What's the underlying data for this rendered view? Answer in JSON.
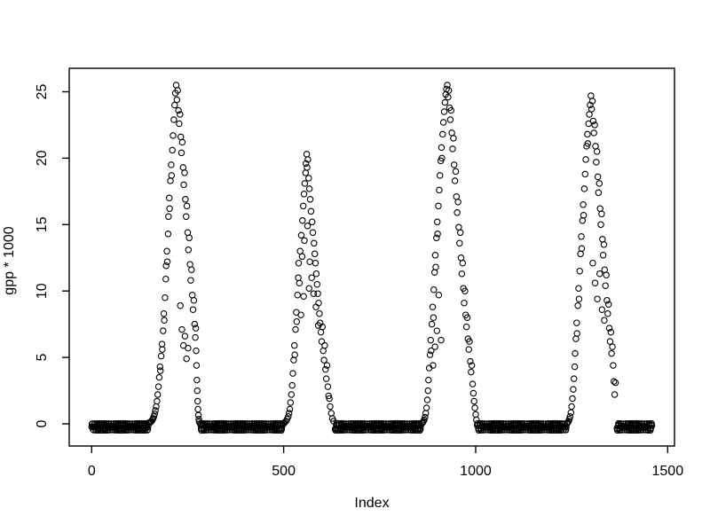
{
  "figure": {
    "background": "#ffffff",
    "foreground": "#000000",
    "title": ""
  },
  "chart_data": {
    "type": "scatter",
    "title": "",
    "xlabel": "Index",
    "ylabel": "gpp * 1000",
    "marker": "open-circle",
    "marker_color": "#000000",
    "grid": false,
    "legend": false,
    "x_ticks": [
      0,
      500,
      1000,
      1500
    ],
    "y_ticks": [
      0,
      5,
      10,
      15,
      20,
      25
    ],
    "xlim": [
      -58,
      1518
    ],
    "ylim": [
      -1.6,
      26.6
    ],
    "n_points_approx": 1460,
    "description": "Daily GPP*1000 time series over ~4 seasonal cycles; near-zero in winter with slight negative noise, seasonal peaks in summer",
    "seasonal_peaks": [
      {
        "index": 220,
        "value": 25.5
      },
      {
        "index": 560,
        "value": 20.3
      },
      {
        "index": 926,
        "value": 25.5
      },
      {
        "index": 1300,
        "value": 24.7
      }
    ],
    "zero_noise_range": [
      -0.5,
      0.05
    ],
    "zero_runs": [
      [
        0,
        147
      ],
      [
        283,
        498
      ],
      [
        634,
        857
      ],
      [
        1004,
        1236
      ],
      [
        1368,
        1459
      ]
    ],
    "season_points": [
      [
        [
          148,
          0.05
        ],
        [
          150,
          0.1
        ],
        [
          152,
          0.1
        ],
        [
          154,
          0.15
        ],
        [
          156,
          0.2
        ],
        [
          158,
          0.3
        ],
        [
          160,
          0.4
        ],
        [
          162,
          0.55
        ],
        [
          164,
          0.75
        ],
        [
          166,
          1.0
        ],
        [
          168,
          1.3
        ],
        [
          170,
          1.7
        ],
        [
          172,
          2.2
        ],
        [
          174,
          2.8
        ],
        [
          176,
          3.5
        ],
        [
          178,
          4.3
        ],
        [
          179,
          4.0
        ],
        [
          181,
          5.1
        ],
        [
          183,
          6.0
        ],
        [
          184,
          5.6
        ],
        [
          186,
          7.0
        ],
        [
          188,
          8.3
        ],
        [
          189,
          7.8
        ],
        [
          191,
          9.5
        ],
        [
          193,
          10.9
        ],
        [
          194,
          11.9
        ],
        [
          196,
          13.0
        ],
        [
          197,
          12.2
        ],
        [
          199,
          14.3
        ],
        [
          200,
          15.6
        ],
        [
          202,
          17.0
        ],
        [
          203,
          16.2
        ],
        [
          205,
          18.3
        ],
        [
          207,
          19.5
        ],
        [
          208,
          18.7
        ],
        [
          210,
          20.6
        ],
        [
          212,
          21.7
        ],
        [
          214,
          22.9
        ],
        [
          216,
          24.0
        ],
        [
          218,
          24.9
        ],
        [
          220,
          25.5
        ],
        [
          222,
          24.4
        ],
        [
          224,
          25.1
        ],
        [
          226,
          23.6
        ],
        [
          228,
          22.6
        ],
        [
          230,
          23.3
        ],
        [
          231,
          8.9
        ],
        [
          232,
          21.6
        ],
        [
          234,
          20.4
        ],
        [
          235,
          7.1
        ],
        [
          236,
          21.2
        ],
        [
          238,
          19.3
        ],
        [
          239,
          5.9
        ],
        [
          240,
          18.0
        ],
        [
          242,
          18.9
        ],
        [
          243,
          6.6
        ],
        [
          244,
          16.9
        ],
        [
          246,
          15.6
        ],
        [
          247,
          4.9
        ],
        [
          248,
          16.4
        ],
        [
          250,
          14.4
        ],
        [
          251,
          5.7
        ],
        [
          252,
          13.1
        ],
        [
          254,
          14.0
        ],
        [
          256,
          12.0
        ],
        [
          258,
          10.8
        ],
        [
          260,
          11.6
        ],
        [
          262,
          9.7
        ],
        [
          264,
          8.6
        ],
        [
          266,
          9.3
        ],
        [
          268,
          7.5
        ],
        [
          270,
          6.5
        ],
        [
          271,
          7.2
        ],
        [
          272,
          5.5
        ],
        [
          273,
          4.4
        ],
        [
          274,
          3.3
        ],
        [
          275,
          2.5
        ],
        [
          276,
          1.7
        ],
        [
          277,
          1.1
        ],
        [
          278,
          0.65
        ],
        [
          279,
          0.35
        ],
        [
          280,
          0.15
        ]
      ],
      [
        [
          500,
          0.05
        ],
        [
          503,
          0.1
        ],
        [
          506,
          0.2
        ],
        [
          509,
          0.35
        ],
        [
          512,
          0.55
        ],
        [
          514,
          0.8
        ],
        [
          516,
          1.1
        ],
        [
          518,
          1.6
        ],
        [
          520,
          2.2
        ],
        [
          522,
          2.9
        ],
        [
          524,
          3.8
        ],
        [
          526,
          4.8
        ],
        [
          528,
          5.9
        ],
        [
          529,
          5.2
        ],
        [
          531,
          7.1
        ],
        [
          533,
          8.4
        ],
        [
          534,
          7.7
        ],
        [
          536,
          9.7
        ],
        [
          538,
          11.0
        ],
        [
          539,
          12.1
        ],
        [
          541,
          10.6
        ],
        [
          543,
          13.0
        ],
        [
          545,
          8.2
        ],
        [
          546,
          14.2
        ],
        [
          548,
          12.6
        ],
        [
          549,
          15.3
        ],
        [
          551,
          16.4
        ],
        [
          552,
          9.6
        ],
        [
          553,
          17.3
        ],
        [
          554,
          13.8
        ],
        [
          555,
          18.1
        ],
        [
          557,
          18.9
        ],
        [
          558,
          19.6
        ],
        [
          560,
          20.3
        ],
        [
          561,
          19.3
        ],
        [
          562,
          14.9
        ],
        [
          563,
          19.9
        ],
        [
          565,
          18.5
        ],
        [
          566,
          10.2
        ],
        [
          567,
          17.7
        ],
        [
          568,
          12.2
        ],
        [
          569,
          16.9
        ],
        [
          571,
          16.0
        ],
        [
          573,
          11.0
        ],
        [
          574,
          15.2
        ],
        [
          576,
          14.4
        ],
        [
          578,
          9.8
        ],
        [
          579,
          13.6
        ],
        [
          581,
          12.8
        ],
        [
          583,
          12.1
        ],
        [
          584,
          8.8
        ],
        [
          585,
          11.3
        ],
        [
          587,
          10.5
        ],
        [
          589,
          9.8
        ],
        [
          590,
          7.4
        ],
        [
          591,
          9.1
        ],
        [
          593,
          8.3
        ],
        [
          595,
          7.6
        ],
        [
          597,
          6.9
        ],
        [
          599,
          6.2
        ],
        [
          601,
          7.3
        ],
        [
          603,
          5.5
        ],
        [
          605,
          4.8
        ],
        [
          607,
          5.9
        ],
        [
          609,
          4.1
        ],
        [
          611,
          3.4
        ],
        [
          613,
          4.4
        ],
        [
          615,
          2.8
        ],
        [
          617,
          2.1
        ],
        [
          619,
          1.9
        ],
        [
          621,
          1.3
        ],
        [
          624,
          0.8
        ],
        [
          627,
          0.4
        ],
        [
          630,
          0.2
        ]
      ],
      [
        [
          860,
          0.05
        ],
        [
          862,
          0.1
        ],
        [
          864,
          0.2
        ],
        [
          866,
          0.3
        ],
        [
          868,
          0.5
        ],
        [
          870,
          0.8
        ],
        [
          872,
          1.2
        ],
        [
          874,
          1.8
        ],
        [
          876,
          2.5
        ],
        [
          877,
          3.3
        ],
        [
          879,
          4.2
        ],
        [
          881,
          5.2
        ],
        [
          883,
          6.3
        ],
        [
          884,
          5.5
        ],
        [
          886,
          7.5
        ],
        [
          888,
          8.8
        ],
        [
          889,
          4.4
        ],
        [
          890,
          8.0
        ],
        [
          891,
          10.1
        ],
        [
          893,
          11.4
        ],
        [
          894,
          5.8
        ],
        [
          895,
          12.7
        ],
        [
          896,
          11.8
        ],
        [
          898,
          14.0
        ],
        [
          899,
          7.0
        ],
        [
          900,
          15.2
        ],
        [
          901,
          14.3
        ],
        [
          903,
          16.4
        ],
        [
          904,
          9.7
        ],
        [
          905,
          17.6
        ],
        [
          907,
          18.7
        ],
        [
          909,
          19.8
        ],
        [
          910,
          6.3
        ],
        [
          911,
          20.8
        ],
        [
          912,
          20.0
        ],
        [
          914,
          21.8
        ],
        [
          916,
          22.7
        ],
        [
          918,
          23.5
        ],
        [
          920,
          24.2
        ],
        [
          922,
          24.8
        ],
        [
          924,
          25.2
        ],
        [
          926,
          25.5
        ],
        [
          928,
          24.6
        ],
        [
          930,
          25.1
        ],
        [
          932,
          23.8
        ],
        [
          934,
          22.9
        ],
        [
          936,
          23.6
        ],
        [
          938,
          21.9
        ],
        [
          940,
          20.7
        ],
        [
          942,
          21.5
        ],
        [
          944,
          19.5
        ],
        [
          946,
          18.3
        ],
        [
          948,
          19.0
        ],
        [
          950,
          17.1
        ],
        [
          952,
          15.9
        ],
        [
          954,
          16.7
        ],
        [
          956,
          14.8
        ],
        [
          958,
          13.6
        ],
        [
          960,
          14.4
        ],
        [
          962,
          12.5
        ],
        [
          964,
          11.3
        ],
        [
          966,
          12.1
        ],
        [
          968,
          10.2
        ],
        [
          970,
          9.1
        ],
        [
          972,
          10.0
        ],
        [
          974,
          8.2
        ],
        [
          976,
          7.3
        ],
        [
          978,
          8.0
        ],
        [
          980,
          6.4
        ],
        [
          982,
          5.6
        ],
        [
          984,
          6.2
        ],
        [
          986,
          4.7
        ],
        [
          988,
          3.9
        ],
        [
          990,
          4.4
        ],
        [
          992,
          3.0
        ],
        [
          994,
          2.3
        ],
        [
          996,
          1.7
        ],
        [
          998,
          1.2
        ],
        [
          1000,
          0.7
        ],
        [
          1002,
          0.3
        ]
      ],
      [
        [
          1238,
          0.05
        ],
        [
          1240,
          0.1
        ],
        [
          1242,
          0.2
        ],
        [
          1244,
          0.35
        ],
        [
          1246,
          0.55
        ],
        [
          1248,
          0.85
        ],
        [
          1250,
          1.3
        ],
        [
          1252,
          1.9
        ],
        [
          1254,
          2.6
        ],
        [
          1256,
          3.4
        ],
        [
          1258,
          4.3
        ],
        [
          1259,
          5.3
        ],
        [
          1261,
          6.4
        ],
        [
          1263,
          7.6
        ],
        [
          1264,
          6.8
        ],
        [
          1266,
          8.9
        ],
        [
          1268,
          10.2
        ],
        [
          1269,
          9.4
        ],
        [
          1271,
          11.5
        ],
        [
          1273,
          12.8
        ],
        [
          1275,
          14.1
        ],
        [
          1276,
          13.2
        ],
        [
          1278,
          15.3
        ],
        [
          1280,
          16.5
        ],
        [
          1281,
          15.7
        ],
        [
          1283,
          17.7
        ],
        [
          1285,
          18.8
        ],
        [
          1287,
          19.9
        ],
        [
          1289,
          20.9
        ],
        [
          1291,
          21.8
        ],
        [
          1292,
          21.1
        ],
        [
          1294,
          22.6
        ],
        [
          1296,
          23.3
        ],
        [
          1298,
          24.0
        ],
        [
          1300,
          24.7
        ],
        [
          1302,
          23.7
        ],
        [
          1304,
          24.3
        ],
        [
          1305,
          12.1
        ],
        [
          1306,
          22.8
        ],
        [
          1308,
          21.9
        ],
        [
          1310,
          22.5
        ],
        [
          1311,
          10.6
        ],
        [
          1312,
          20.9
        ],
        [
          1314,
          19.7
        ],
        [
          1316,
          20.5
        ],
        [
          1317,
          9.4
        ],
        [
          1318,
          18.6
        ],
        [
          1320,
          17.4
        ],
        [
          1322,
          18.1
        ],
        [
          1323,
          11.3
        ],
        [
          1324,
          16.2
        ],
        [
          1326,
          15.0
        ],
        [
          1328,
          15.8
        ],
        [
          1329,
          8.6
        ],
        [
          1330,
          13.9
        ],
        [
          1332,
          12.7
        ],
        [
          1334,
          13.5
        ],
        [
          1335,
          7.8
        ],
        [
          1336,
          11.6
        ],
        [
          1338,
          10.4
        ],
        [
          1340,
          11.2
        ],
        [
          1342,
          9.3
        ],
        [
          1344,
          8.3
        ],
        [
          1346,
          9.0
        ],
        [
          1348,
          7.2
        ],
        [
          1350,
          6.2
        ],
        [
          1352,
          6.9
        ],
        [
          1354,
          5.3
        ],
        [
          1356,
          5.8
        ],
        [
          1358,
          4.4
        ],
        [
          1360,
          3.2
        ],
        [
          1362,
          2.2
        ],
        [
          1364,
          3.1
        ]
      ]
    ]
  }
}
